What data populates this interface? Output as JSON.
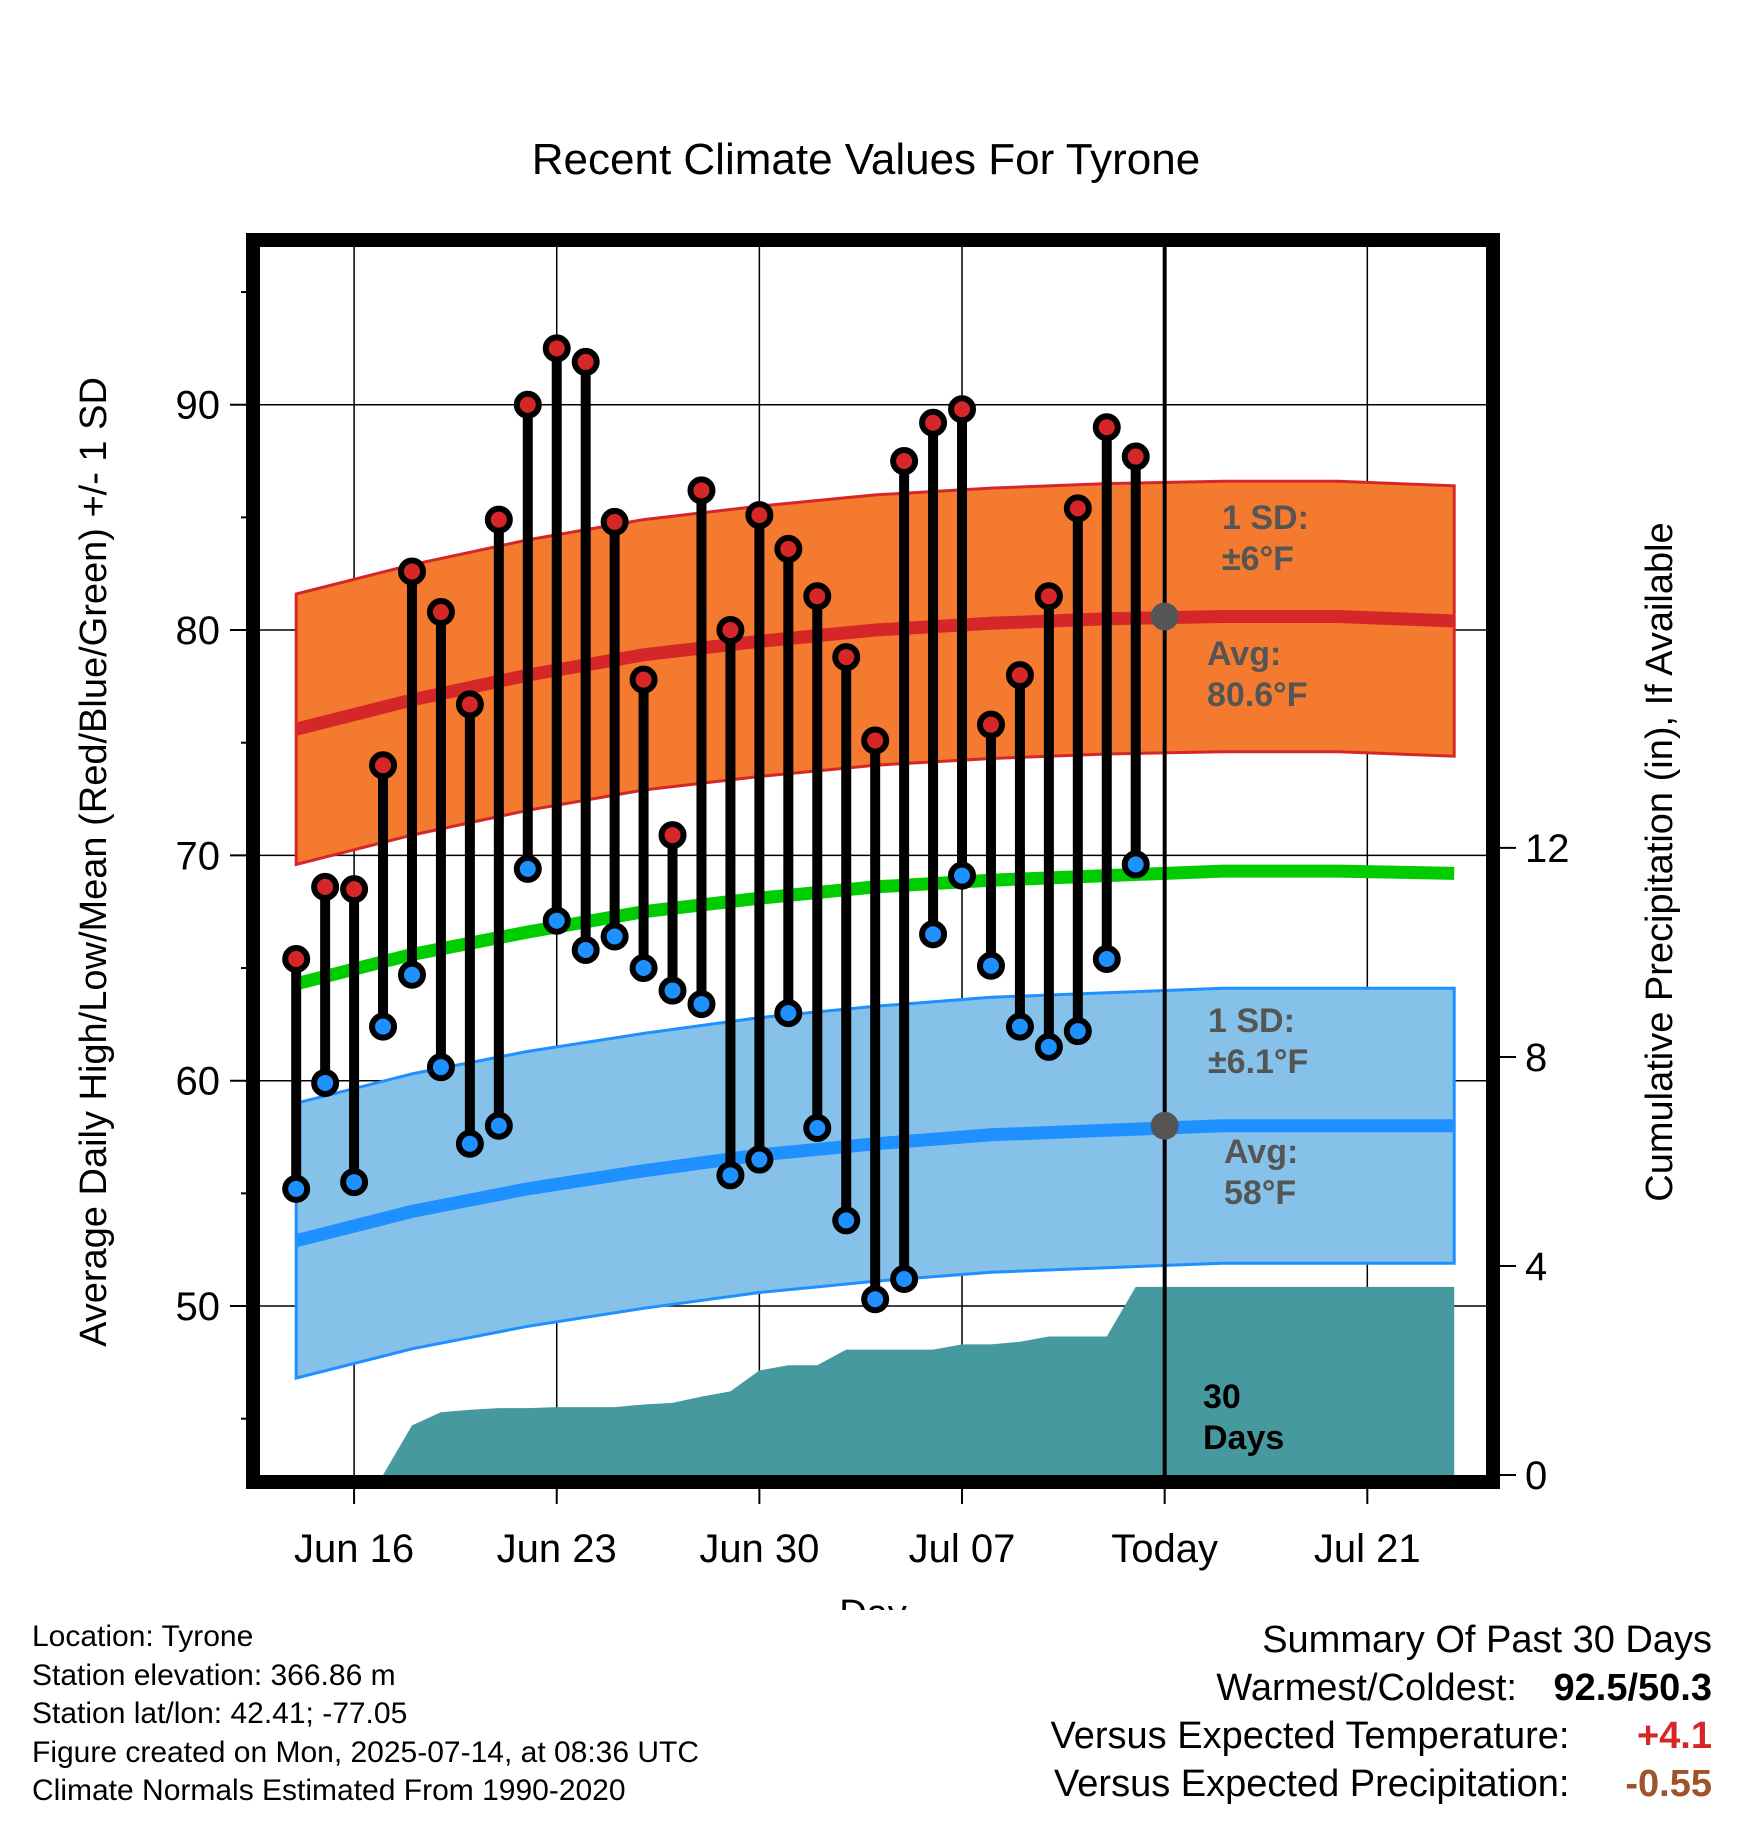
{
  "chart_data": {
    "type": "line",
    "title": "Recent Climate Values For Tyrone",
    "xlabel": "Day",
    "ylabel": "Average Daily High/Low/Mean (Red/Blue/Green) +/- 1 SD",
    "y2label": "Cumulative Precipitation (in), If Available",
    "x_tick_labels": [
      "Jun 16",
      "Jun 23",
      "Jun 30",
      "Jul 07",
      "Today",
      "Jul 21"
    ],
    "y_tick_labels": [
      "50",
      "60",
      "70",
      "80",
      "90"
    ],
    "y2_tick_labels": [
      "0",
      "4",
      "8",
      "12"
    ],
    "ylim": [
      42.5,
      97
    ],
    "y2lim": [
      0,
      23.5
    ],
    "grid": true,
    "days": [
      "Jun 14",
      "Jun 15",
      "Jun 16",
      "Jun 17",
      "Jun 18",
      "Jun 19",
      "Jun 20",
      "Jun 21",
      "Jun 22",
      "Jun 23",
      "Jun 24",
      "Jun 25",
      "Jun 26",
      "Jun 27",
      "Jun 28",
      "Jun 29",
      "Jun 30",
      "Jul 01",
      "Jul 02",
      "Jul 03",
      "Jul 04",
      "Jul 05",
      "Jul 06",
      "Jul 07",
      "Jul 08",
      "Jul 09",
      "Jul 10",
      "Jul 11",
      "Jul 12",
      "Jul 13"
    ],
    "series": [
      {
        "name": "Red",
        "values": [
          65.4,
          68.6,
          68.5,
          74.0,
          82.6,
          80.8,
          76.7,
          84.9,
          90.0,
          92.5,
          91.9,
          84.8,
          77.8,
          70.9,
          86.2,
          80.0,
          85.1,
          83.6,
          81.5,
          78.8,
          75.1,
          87.5,
          89.2,
          89.8,
          75.8,
          78.0,
          81.5,
          85.4,
          89.0,
          87.7
        ]
      },
      {
        "name": "Blue",
        "values": [
          55.2,
          59.9,
          55.5,
          62.4,
          64.7,
          60.6,
          57.2,
          58.0,
          69.4,
          67.1,
          65.8,
          66.4,
          65.0,
          64.0,
          63.4,
          55.8,
          56.5,
          63.0,
          57.9,
          53.8,
          50.3,
          51.2,
          66.5,
          69.1,
          65.1,
          62.4,
          61.5,
          62.2,
          65.4,
          69.6
        ]
      }
    ],
    "normals": {
      "x_range": [
        "Jun 14",
        "Jul 24"
      ],
      "high_mean": [
        75.6,
        76.9,
        78.0,
        78.9,
        79.5,
        80.0,
        80.3,
        80.5,
        80.6,
        80.6,
        80.4
      ],
      "high_sd": 6,
      "low_mean": [
        52.9,
        54.2,
        55.2,
        56.0,
        56.7,
        57.2,
        57.6,
        57.8,
        58.0,
        58.0,
        58.0
      ],
      "low_sd": 6.1,
      "daily_mean": [
        64.3,
        65.6,
        66.6,
        67.5,
        68.1,
        68.6,
        68.9,
        69.1,
        69.3,
        69.3,
        69.2
      ]
    },
    "cumulative_precip": {
      "x": [
        "Jun 17",
        "Jun 18",
        "Jun 19",
        "Jun 20",
        "Jun 21",
        "Jun 22",
        "Jun 23",
        "Jun 24",
        "Jun 25",
        "Jun 26",
        "Jun 27",
        "Jun 28",
        "Jun 29",
        "Jun 30",
        "Jul 01",
        "Jul 02",
        "Jul 03",
        "Jul 04",
        "Jul 05",
        "Jul 06",
        "Jul 07",
        "Jul 08",
        "Jul 09",
        "Jul 10",
        "Jul 11",
        "Jul 12",
        "Jul 13",
        "Jul 14",
        "Jul 24"
      ],
      "values": [
        0,
        0.95,
        1.2,
        1.25,
        1.28,
        1.28,
        1.3,
        1.3,
        1.3,
        1.35,
        1.38,
        1.5,
        1.6,
        2.0,
        2.1,
        2.1,
        2.4,
        2.4,
        2.4,
        2.4,
        2.5,
        2.5,
        2.55,
        2.65,
        2.65,
        2.65,
        3.6,
        3.6,
        3.6
      ]
    },
    "annotations": {
      "high_sd_label": [
        "1 SD:",
        "±6°F"
      ],
      "high_avg_label": [
        "Avg:",
        "80.6°F"
      ],
      "high_avg_value": 80.6,
      "low_sd_label": [
        "1 SD:",
        "±6.1°F"
      ],
      "low_avg_label": [
        "Avg:",
        "58°F"
      ],
      "low_avg_value": 58,
      "today_label": [
        "30",
        "Days"
      ],
      "today": "Jul 14"
    },
    "colors": {
      "high": "#d62728",
      "high_band": "#f47a30",
      "low": "#1e90ff",
      "low_band": "#85c1e9",
      "mean": "#00cc00",
      "precip": "#4799a0"
    }
  },
  "footer": {
    "location": "Location: Tyrone",
    "elevation": "Station elevation: 366.86 m",
    "latlon": "Station lat/lon: 42.41; -77.05",
    "created": "Figure created on Mon, 2025-07-14, at 08:36 UTC",
    "normals": "Climate Normals Estimated From 1990-2020"
  },
  "summary": {
    "heading": "Summary Of Past 30 Days",
    "warm_cold_label": "Warmest/Coldest:",
    "warm_cold_value": "92.5/50.3",
    "temp_label": "Versus Expected Temperature:",
    "temp_value": "+4.1",
    "precip_label": "Versus Expected Precipitation:",
    "precip_value": "-0.55"
  }
}
